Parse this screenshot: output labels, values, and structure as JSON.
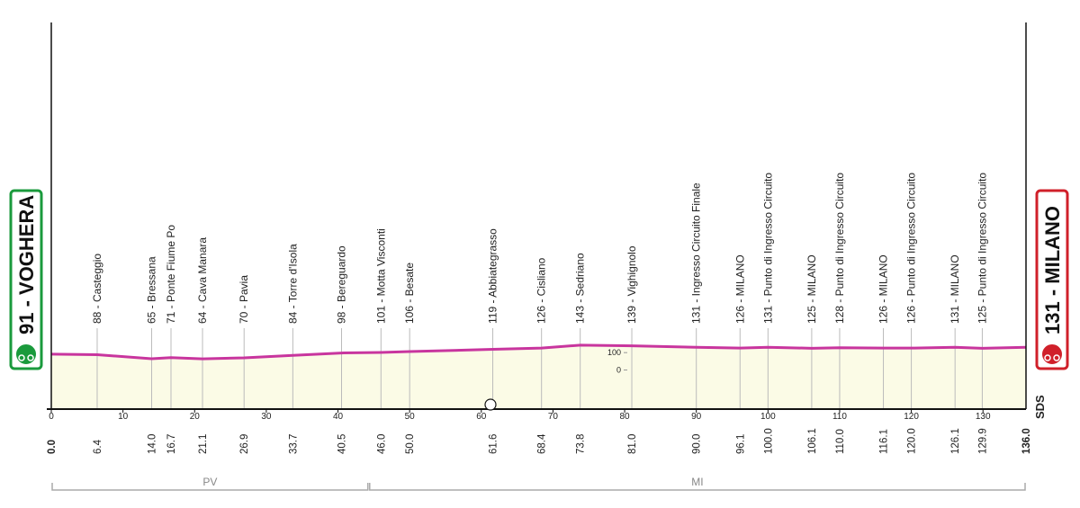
{
  "chart_data": {
    "type": "profile",
    "start": {
      "name": "91 - VOGHERA",
      "km": 0,
      "km_label": "0.0",
      "color": "#1a9a3c"
    },
    "finish": {
      "name": "131 - MILANO",
      "km": 136,
      "km_label": "136.0",
      "color": "#d0202a"
    },
    "waypoints": {
      "names": [
        "88 - Casteggio",
        "65 - Bressana",
        "71 - Ponte Fiume Po",
        "64 - Cava Manara",
        "70 - Pavia",
        "84 - Torre d'Isola",
        "98 - Bereguardo",
        "101 - Motta Visconti",
        "106 - Besate",
        "119 - Abbiategrasso",
        "126 - Cisliano",
        "143 - Sedriano",
        "139 - Vighignolo",
        "131 - Ingresso Circuito Finale",
        "126 - MILANO",
        "131 - Punto di Ingresso Circuito",
        "125 - MILANO",
        "128 - Punto di Ingresso Circuito",
        "126 - MILANO",
        "126 - Punto di Ingresso Circuito",
        "131 - MILANO",
        "125 - Punto di Ingresso Circuito"
      ],
      "km": [
        6.4,
        14,
        16.7,
        21.1,
        26.9,
        33.7,
        40.5,
        46,
        50,
        61.6,
        68.4,
        73.8,
        81,
        90,
        96.1,
        100,
        106.1,
        110,
        116.1,
        120,
        126.1,
        129.9
      ],
      "km_labels": [
        "6.4",
        "14.0",
        "16.7",
        "21.1",
        "26.9",
        "33.7",
        "40.5",
        "46.0",
        "50.0",
        "61.6",
        "68.4",
        "73.8",
        "81.0",
        "90.0",
        "96.1",
        "100.0",
        "106.1",
        "110.0",
        "116.1",
        "120.0",
        "126.1",
        "129.9"
      ]
    },
    "profile": {
      "color": "#c8359e",
      "fill": "#fbfbe6",
      "km": [
        0,
        6.4,
        14,
        16.7,
        21.1,
        26.9,
        33.7,
        40.5,
        46,
        50,
        61.6,
        68.4,
        73.8,
        81,
        90,
        96.1,
        100,
        106.1,
        110,
        116.1,
        120,
        126.1,
        129.9,
        136
      ],
      "elevation": [
        91,
        88,
        65,
        71,
        64,
        70,
        84,
        98,
        101,
        106,
        119,
        126,
        143,
        139,
        131,
        126,
        131,
        125,
        128,
        126,
        126,
        131,
        125,
        131
      ]
    },
    "xlim": [
      0,
      136
    ],
    "xticks": [
      0,
      10,
      20,
      30,
      40,
      50,
      60,
      70,
      80,
      90,
      100,
      110,
      120,
      130
    ],
    "ylim": [
      -225,
      2000
    ],
    "yticks": [
      0,
      100
    ],
    "regions": [
      {
        "label": "PV",
        "from": 0,
        "to": 44.3
      },
      {
        "label": "MI",
        "from": 44.3,
        "to": 136
      }
    ],
    "logo": "SDS"
  }
}
